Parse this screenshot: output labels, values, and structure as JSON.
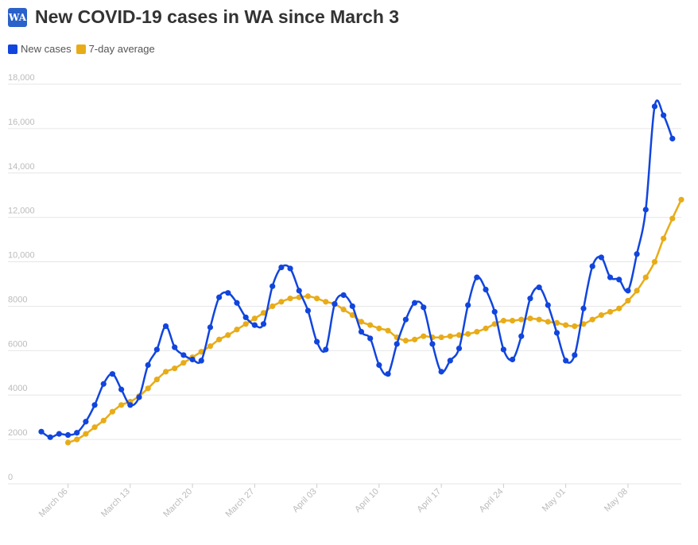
{
  "header": {
    "logo_text": "WA",
    "title": "New COVID-19 cases in WA since March 3"
  },
  "colors": {
    "new_cases": "#1145de",
    "avg": "#e8ac18",
    "grid": "#e6e6e6",
    "tick_text": "#bbbbbb"
  },
  "chart_data": {
    "type": "line",
    "title": "New COVID-19 cases in WA since March 3",
    "xlabel": "",
    "ylabel": "",
    "ylim": [
      0,
      18000
    ],
    "y_ticks": [
      "0",
      "2000",
      "4000",
      "6000",
      "8000",
      "10,000",
      "12,000",
      "14,000",
      "16,000",
      "18,000"
    ],
    "x_ticks": [
      {
        "day": 3,
        "label": "March 06"
      },
      {
        "day": 10,
        "label": "March 13"
      },
      {
        "day": 17,
        "label": "March 20"
      },
      {
        "day": 24,
        "label": "March 27"
      },
      {
        "day": 31,
        "label": "April 03"
      },
      {
        "day": 38,
        "label": "April 10"
      },
      {
        "day": 45,
        "label": "April 17"
      },
      {
        "day": 52,
        "label": "April 24"
      },
      {
        "day": 59,
        "label": "May 01"
      },
      {
        "day": 66,
        "label": "May 08"
      }
    ],
    "grid": true,
    "legend": "top-left",
    "series": [
      {
        "name": "New cases",
        "start_day": 0,
        "values": [
          2350,
          2100,
          2250,
          2200,
          2300,
          2800,
          3550,
          4500,
          4950,
          4250,
          3550,
          3900,
          5350,
          6050,
          7100,
          6150,
          5800,
          5600,
          5550,
          7050,
          8400,
          8600,
          8150,
          7500,
          7150,
          7200,
          8900,
          9750,
          9700,
          8700,
          7800,
          6400,
          6050,
          8100,
          8500,
          8000,
          6850,
          6550,
          5350,
          4950,
          6300,
          7400,
          8150,
          7950,
          6300,
          5050,
          5550,
          6100,
          8050,
          9300,
          8750,
          7750,
          6050,
          5600,
          6650,
          8350,
          8850,
          8050,
          6800,
          5550,
          5800,
          7900,
          9800,
          10200,
          9300,
          9200,
          8700,
          10350,
          12350,
          17000,
          16600,
          15550
        ]
      },
      {
        "name": "7-day average",
        "start_day": 3,
        "values": [
          1860,
          2000,
          2250,
          2550,
          2850,
          3250,
          3550,
          3700,
          3950,
          4300,
          4700,
          5050,
          5200,
          5450,
          5700,
          5950,
          6200,
          6500,
          6700,
          6950,
          7200,
          7450,
          7700,
          8000,
          8200,
          8350,
          8400,
          8450,
          8350,
          8200,
          8100,
          7850,
          7600,
          7300,
          7150,
          7000,
          6900,
          6600,
          6450,
          6500,
          6650,
          6600,
          6600,
          6650,
          6700,
          6750,
          6850,
          7000,
          7200,
          7350,
          7350,
          7400,
          7450,
          7400,
          7300,
          7250,
          7150,
          7100,
          7200,
          7400,
          7600,
          7750,
          7900,
          8250,
          8700,
          9300,
          10000,
          11050,
          11950,
          12800
        ]
      }
    ]
  }
}
